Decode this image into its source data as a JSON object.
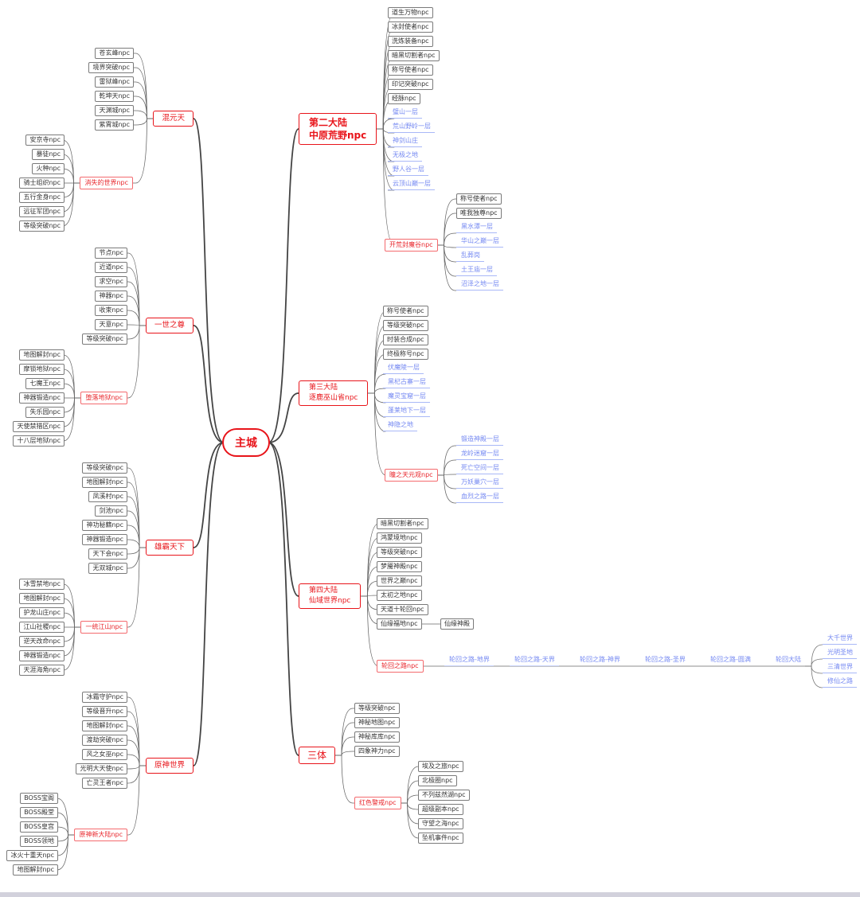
{
  "root": {
    "label": "主城"
  },
  "colors": {
    "accent": "#e8141a",
    "link": "#7488f2",
    "line": "#666666"
  },
  "branches": [
    {
      "side": "left",
      "label": [
        "混元天"
      ],
      "items": [
        "苍玄峰npc",
        "境界突破npc",
        "雷狱峰npc",
        "乾坤天npc",
        "天渊城npc",
        "紫霄城npc"
      ],
      "sub": {
        "label": "消失的世界npc",
        "items": [
          "安京寺npc",
          "暴徒npc",
          "火种npc",
          "骑士组织npc",
          "五行金身npc",
          "远征军团npc",
          "等级突破npc"
        ]
      }
    },
    {
      "side": "left",
      "label": [
        "一世之尊"
      ],
      "items": [
        "节点npc",
        "近道npc",
        "求空npc",
        "神器npc",
        "收束npc",
        "天意npc",
        "等级突破npc"
      ],
      "sub": {
        "label": "堕落地狱npc",
        "items": [
          "地图解封npc",
          "摩锁地狱npc",
          "七魔王npc",
          "神器锻造npc",
          "失乐园npc",
          "天使禁猎区npc",
          "十八层地狱npc"
        ]
      }
    },
    {
      "side": "left",
      "label": [
        "雄霸天下"
      ],
      "items": [
        "等级突破npc",
        "地图解封npc",
        "凤溪村npc",
        "剑池npc",
        "神功秘籍npc",
        "神器锻造npc",
        "天下会npc",
        "无双城npc"
      ],
      "sub": {
        "label": "一统江山npc",
        "items": [
          "冰雪禁地npc",
          "地图解封npc",
          "护龙山庄npc",
          "江山社稷npc",
          "逆天改命npc",
          "神器锻造npc",
          "天涯海角npc"
        ]
      }
    },
    {
      "side": "left",
      "label": [
        "原神世界"
      ],
      "items": [
        "冰霜守护npc",
        "等级晋升npc",
        "地图解封npc",
        "渡劫突破npc",
        "风之女巫npc",
        "光明大天使npc",
        "亡灵王者npc"
      ],
      "sub": {
        "label": "原神新大陆npc",
        "items": [
          "BOSS宝阁",
          "BOSS殿堂",
          "BOSS皇宫",
          "BOSS领地",
          "冰火十重天npc",
          "地图解封npc"
        ]
      }
    },
    {
      "side": "right",
      "label": [
        "第二大陆",
        "中原荒野npc"
      ],
      "items": [
        "道生万物npc",
        "冰封使者npc",
        "洗炼装备npc",
        "暗黑切割者npc",
        "称号使者npc",
        "印记突破npc",
        "经脉npc"
      ],
      "maps": [
        "璧山一层",
        "荒山野岭一层",
        "神剑山庄",
        "无极之地",
        "野人谷一层",
        "云顶山巅一层"
      ],
      "sub": {
        "label": "开荒封魔谷npc",
        "items": [
          "称号使者npc",
          "唯我独尊npc"
        ],
        "maps": [
          "黑水潭一层",
          "华山之巅一层",
          "乱葬岗",
          "土王庙一层",
          "沼泽之地一层"
        ]
      }
    },
    {
      "side": "right",
      "label": [
        "第三大陆",
        "逐鹿巫山省npc"
      ],
      "items": [
        "称号使者npc",
        "等级突破npc",
        "时装合成npc",
        "终极称号npc"
      ],
      "maps": [
        "伏魔陵一层",
        "黑杞古寨一层",
        "魔灵宝窟一层",
        "蓬莱地下一层",
        "神隐之地"
      ],
      "sub": {
        "label": "瞳之天元观npc",
        "items": [],
        "maps": [
          "锻造神殿一层",
          "龙岭迷窟一层",
          "死亡空间一层",
          "万妖巢穴一层",
          "血烈之路一层"
        ]
      }
    },
    {
      "side": "right",
      "label": [
        "第四大陆",
        "仙域世界npc"
      ],
      "items": [
        "暗黑切割者npc",
        "鸿蒙境地npc",
        "等级突破npc",
        "梦魇神殿npc",
        "世界之巅npc",
        "太初之地npc",
        "天道十轮回npc",
        {
          "label": "仙缘福地npc",
          "children": [
            "仙缘神殿"
          ]
        }
      ],
      "maps": [],
      "sub": {
        "label": "轮回之路npc",
        "chain": [
          "轮回之路-地界",
          "轮回之路-天界",
          "轮回之路-神界",
          "轮回之路-圣界",
          "轮回之路-圆满",
          "轮回大陆"
        ],
        "leaves": [
          "大千世界",
          "光明圣地",
          "三清世界",
          "修仙之路"
        ]
      }
    },
    {
      "side": "right",
      "label": [
        "三体"
      ],
      "items": [
        "等级突破npc",
        "神秘地图npc",
        "神秘库库npc",
        "四象神力npc"
      ],
      "maps": [],
      "sub": {
        "label": "红色警戒npc",
        "items": [
          "埃及之旅npc",
          "北极圈npc",
          "不列兹然湖npc",
          "超级副本npc",
          "守望之海npc",
          "坠机事件npc"
        ],
        "maps": []
      }
    }
  ]
}
